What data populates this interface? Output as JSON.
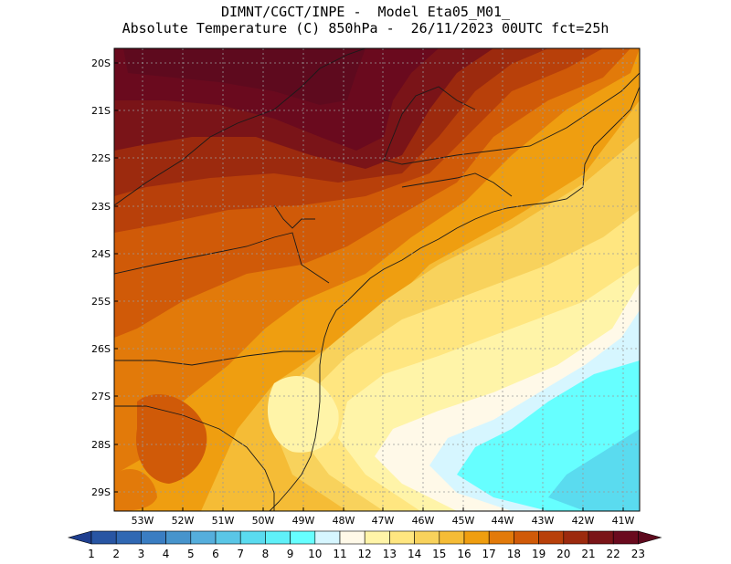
{
  "header": {
    "line1": "DIMNT/CGCT/INPE -  Model Eta05_M01_",
    "line2": "Absolute Temperature (C) 850hPa -  26/11/2023 00UTC fct=25h"
  },
  "map": {
    "lat_labels": [
      "20S",
      "21S",
      "22S",
      "23S",
      "24S",
      "25S",
      "26S",
      "27S",
      "28S",
      "29S"
    ],
    "lon_labels": [
      "53W",
      "52W",
      "51W",
      "50W",
      "49W",
      "48W",
      "47W",
      "46W",
      "45W",
      "44W",
      "43W",
      "42W",
      "41W"
    ],
    "region": "Southeast and South Brazil"
  },
  "colorbar": {
    "labels": [
      "1",
      "2",
      "3",
      "4",
      "5",
      "6",
      "7",
      "8",
      "9",
      "10",
      "11",
      "12",
      "13",
      "14",
      "15",
      "16",
      "17",
      "18",
      "19",
      "20",
      "21",
      "22",
      "23"
    ],
    "colors": [
      "#1f3f8f",
      "#2855a3",
      "#3068b3",
      "#3a7dc2",
      "#4794cc",
      "#55aedc",
      "#5ac6e6",
      "#5adbef",
      "#5ff0f8",
      "#66ffff",
      "#d6f6ff",
      "#fff9e8",
      "#fff4a8",
      "#ffe680",
      "#f8d25c",
      "#f5bc36",
      "#ef9e10",
      "#e27a0a",
      "#d05a08",
      "#b8400a",
      "#9c2a0e",
      "#7a1418",
      "#6a0a1e",
      "#5e0a1e"
    ]
  }
}
